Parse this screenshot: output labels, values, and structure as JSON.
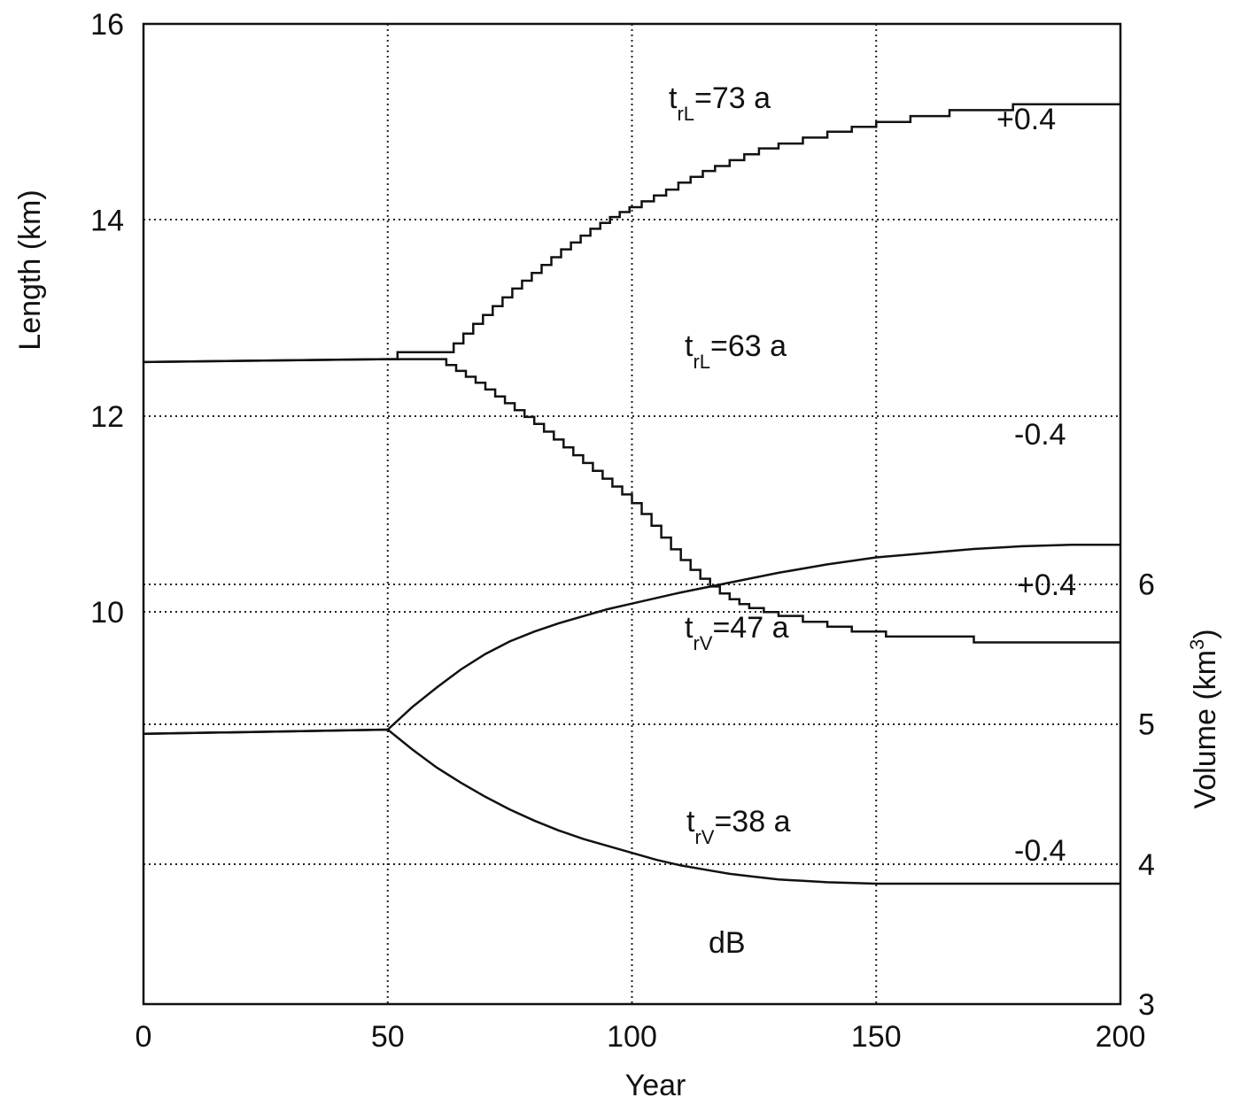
{
  "chart_data": {
    "type": "line",
    "xlabel": "Year",
    "ylabel_left": "Length (km)",
    "ylabel_right_main": "Volume (km",
    "ylabel_right_sup": "3",
    "ylabel_right_close": ")",
    "xlim": [
      0,
      200
    ],
    "ylim_left": [
      6,
      16
    ],
    "ylim_right": [
      3,
      10
    ],
    "x_ticks": [
      0,
      50,
      100,
      150,
      200
    ],
    "left_ticks": [
      10,
      12,
      14,
      16
    ],
    "right_ticks": [
      3,
      4,
      5,
      6
    ],
    "grid": true,
    "series": [
      {
        "axis": "left",
        "stepped": true,
        "x": [
          0,
          50,
          52,
          62,
          63.5,
          65.5,
          67.5,
          69.5,
          71.5,
          73.5,
          75.5,
          77.5,
          79.5,
          81.5,
          83.5,
          85.5,
          87.5,
          89.5,
          91.5,
          93.5,
          95.5,
          97.5,
          99.5,
          102,
          104.5,
          107,
          109.5,
          112,
          114.5,
          117,
          120,
          123,
          126,
          130,
          135,
          140,
          145,
          150,
          157,
          165,
          178,
          200
        ],
        "y": [
          12.55,
          12.58,
          12.65,
          12.65,
          12.74,
          12.84,
          12.94,
          13.03,
          13.12,
          13.21,
          13.3,
          13.38,
          13.46,
          13.54,
          13.62,
          13.7,
          13.77,
          13.84,
          13.91,
          13.97,
          14.03,
          14.08,
          14.13,
          14.19,
          14.25,
          14.31,
          14.38,
          14.44,
          14.5,
          14.55,
          14.61,
          14.67,
          14.73,
          14.78,
          14.84,
          14.9,
          14.95,
          15.0,
          15.06,
          15.12,
          15.18,
          15.18
        ]
      },
      {
        "axis": "left",
        "stepped": true,
        "x": [
          0,
          50,
          62,
          64,
          66,
          68,
          70,
          72,
          74,
          76,
          78,
          80,
          82,
          84,
          86,
          88,
          90,
          92,
          94,
          96,
          98,
          100,
          102,
          104,
          106,
          108,
          110,
          112,
          114,
          116,
          118,
          120,
          122,
          124,
          127,
          130,
          135,
          140,
          145,
          152,
          170,
          200
        ],
        "y": [
          12.55,
          12.58,
          12.52,
          12.46,
          12.4,
          12.34,
          12.27,
          12.2,
          12.13,
          12.06,
          11.99,
          11.92,
          11.84,
          11.76,
          11.68,
          11.6,
          11.52,
          11.44,
          11.36,
          11.28,
          11.2,
          11.11,
          11.0,
          10.88,
          10.76,
          10.64,
          10.53,
          10.43,
          10.34,
          10.26,
          10.19,
          10.13,
          10.08,
          10.04,
          10.0,
          9.96,
          9.9,
          9.85,
          9.8,
          9.75,
          9.69,
          9.69
        ]
      },
      {
        "axis": "right",
        "x": [
          0,
          50,
          55,
          60,
          65,
          70,
          75,
          80,
          85,
          90,
          95,
          100,
          110,
          120,
          130,
          140,
          150,
          160,
          170,
          180,
          190,
          200
        ],
        "y": [
          4.93,
          4.96,
          5.12,
          5.26,
          5.39,
          5.5,
          5.59,
          5.66,
          5.72,
          5.77,
          5.82,
          5.86,
          5.94,
          6.01,
          6.08,
          6.14,
          6.19,
          6.22,
          6.25,
          6.27,
          6.28,
          6.28
        ]
      },
      {
        "axis": "right",
        "x": [
          0,
          50,
          55,
          60,
          65,
          70,
          75,
          80,
          85,
          90,
          95,
          100,
          105,
          110,
          115,
          120,
          125,
          130,
          135,
          140,
          150,
          160,
          170,
          180,
          190,
          200
        ],
        "y": [
          4.93,
          4.96,
          4.82,
          4.69,
          4.58,
          4.48,
          4.39,
          4.31,
          4.24,
          4.18,
          4.13,
          4.08,
          4.03,
          3.99,
          3.96,
          3.93,
          3.91,
          3.89,
          3.88,
          3.87,
          3.86,
          3.86,
          3.86,
          3.86,
          3.86,
          3.86
        ]
      }
    ],
    "annotations": [
      {
        "main": "t",
        "sub": "rL",
        "rest": "=73 a"
      },
      {
        "main": "t",
        "sub": "rL",
        "rest": "=63 a"
      },
      {
        "main": "t",
        "sub": "rV",
        "rest": "=47 a"
      },
      {
        "main": "t",
        "sub": "rV",
        "rest": "=38 a"
      },
      {
        "text": "+0.4"
      },
      {
        "text": "-0.4"
      },
      {
        "text": "+0.4"
      },
      {
        "text": "-0.4"
      },
      {
        "text": "dB"
      }
    ]
  }
}
